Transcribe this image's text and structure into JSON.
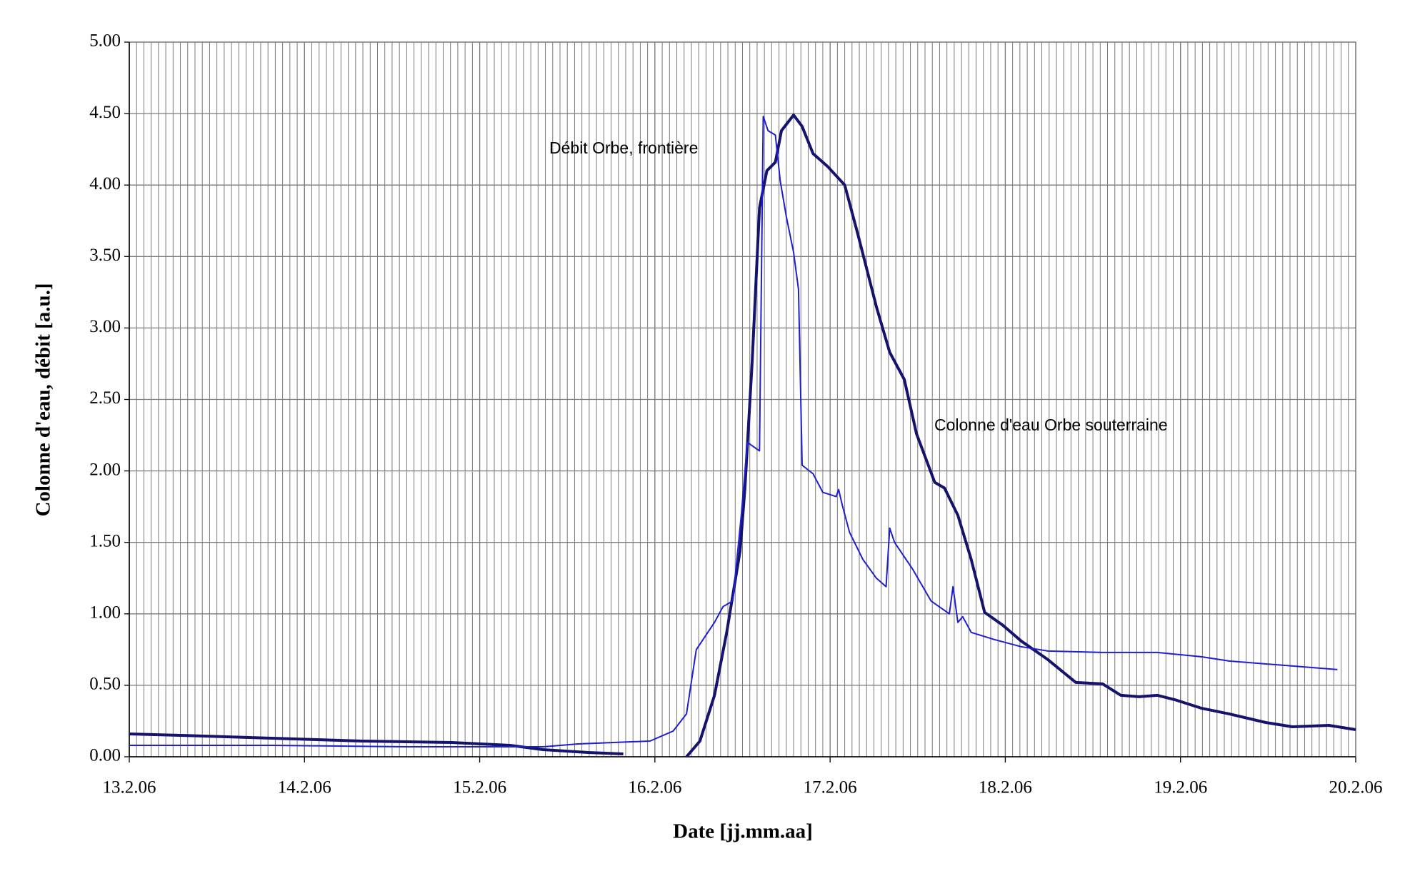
{
  "chart_data": {
    "type": "line",
    "xlabel": "Date [jj.mm.aa]",
    "ylabel": "Colonne d'eau, débit [a.u.]",
    "xlim": [
      "2006-02-13",
      "2006-02-20"
    ],
    "xticks": [
      {
        "value": "2006-02-13",
        "label": "13.2.06"
      },
      {
        "value": "2006-02-14",
        "label": "14.2.06"
      },
      {
        "value": "2006-02-15",
        "label": "15.2.06"
      },
      {
        "value": "2006-02-16",
        "label": "16.2.06"
      },
      {
        "value": "2006-02-17",
        "label": "17.2.06"
      },
      {
        "value": "2006-02-18",
        "label": "18.2.06"
      },
      {
        "value": "2006-02-19",
        "label": "19.2.06"
      },
      {
        "value": "2006-02-20",
        "label": "20.2.06"
      }
    ],
    "ylim": [
      0,
      5
    ],
    "yticks": [
      {
        "value": 0,
        "label": "0.00"
      },
      {
        "value": 0.5,
        "label": "0.50"
      },
      {
        "value": 1,
        "label": "1.00"
      },
      {
        "value": 1.5,
        "label": "1.50"
      },
      {
        "value": 2,
        "label": "2.00"
      },
      {
        "value": 2.5,
        "label": "2.50"
      },
      {
        "value": 3,
        "label": "3.00"
      },
      {
        "value": 3.5,
        "label": "3.50"
      },
      {
        "value": 4,
        "label": "4.00"
      },
      {
        "value": 4.5,
        "label": "4.50"
      },
      {
        "value": 5,
        "label": "5.00"
      }
    ],
    "grid": true,
    "series": [
      {
        "name": "Colonne d'eau Orbe souterraine",
        "color": "#14146e",
        "width": 4,
        "x": [
          "2006-02-13T00:00",
          "2006-02-13T07:00",
          "2006-02-13T19:30",
          "2006-02-14T07:50",
          "2006-02-14T20:10",
          "2006-02-15T04:10",
          "2006-02-15T08:40",
          "2006-02-15T14:50",
          "2006-02-15T19:40",
          "2006-02-15T22:00",
          "2006-02-16T04:20",
          "2006-02-16T06:10",
          "2006-02-16T08:10",
          "2006-02-16T09:50",
          "2006-02-16T11:40",
          "2006-02-16T12:20",
          "2006-02-16T13:20",
          "2006-02-16T14:20",
          "2006-02-16T15:20",
          "2006-02-16T16:30",
          "2006-02-16T17:20",
          "2006-02-16T19:00",
          "2006-02-16T20:10",
          "2006-02-16T21:40",
          "2006-02-16T23:40",
          "2006-02-17T02:00",
          "2006-02-17T03:50",
          "2006-02-17T06:20",
          "2006-02-17T08:10",
          "2006-02-17T10:10",
          "2006-02-17T11:50",
          "2006-02-17T14:20",
          "2006-02-17T15:40",
          "2006-02-17T17:30",
          "2006-02-17T19:20",
          "2006-02-17T21:10",
          "2006-02-17T23:40",
          "2006-02-18T02:10",
          "2006-02-18T05:50",
          "2006-02-18T09:40",
          "2006-02-18T13:20",
          "2006-02-18T15:50",
          "2006-02-18T18:20",
          "2006-02-18T20:50",
          "2006-02-18T23:10",
          "2006-02-19T02:50",
          "2006-02-19T06:40",
          "2006-02-19T11:40",
          "2006-02-19T15:20",
          "2006-02-19T20:20",
          "2006-02-20T00:00"
        ],
        "values": [
          0.16,
          0.15,
          0.13,
          0.11,
          0.1,
          0.08,
          0.05,
          0.03,
          0.02,
          null,
          0,
          0.11,
          0.43,
          0.87,
          1.44,
          1.88,
          2.77,
          3.84,
          4.1,
          4.16,
          4.38,
          4.49,
          4.41,
          4.22,
          4.13,
          4.0,
          3.65,
          3.15,
          2.83,
          2.64,
          2.26,
          1.92,
          1.88,
          1.69,
          1.38,
          1.01,
          0.92,
          0.81,
          0.68,
          0.52,
          0.51,
          0.43,
          0.42,
          0.43,
          0.4,
          0.34,
          0.3,
          0.24,
          0.21,
          0.22,
          0.19
        ]
      },
      {
        "name": "Débit Orbe, frontière",
        "color": "#1e1ed2",
        "width": 2,
        "x": [
          "2006-02-13T00:00",
          "2006-02-13T19:30",
          "2006-02-14T14:00",
          "2006-02-15T08:40",
          "2006-02-15T13:30",
          "2006-02-15T23:20",
          "2006-02-16T02:30",
          "2006-02-16T04:20",
          "2006-02-16T05:40",
          "2006-02-16T08:10",
          "2006-02-16T09:20",
          "2006-02-16T10:40",
          "2006-02-16T11:50",
          "2006-02-16T12:40",
          "2006-02-16T14:20",
          "2006-02-16T14:50",
          "2006-02-16T15:30",
          "2006-02-16T16:30",
          "2006-02-16T17:10",
          "2006-02-16T18:00",
          "2006-02-16T19:00",
          "2006-02-16T19:40",
          "2006-02-16T20:10",
          "2006-02-16T21:40",
          "2006-02-16T23:00",
          "2006-02-17T00:50",
          "2006-02-17T01:10",
          "2006-02-17T01:40",
          "2006-02-17T02:40",
          "2006-02-17T04:30",
          "2006-02-17T06:20",
          "2006-02-17T07:40",
          "2006-02-17T08:10",
          "2006-02-17T08:50",
          "2006-02-17T11:20",
          "2006-02-17T13:50",
          "2006-02-17T16:20",
          "2006-02-17T16:50",
          "2006-02-17T17:30",
          "2006-02-17T18:10",
          "2006-02-17T19:20",
          "2006-02-17T22:30",
          "2006-02-18T02:10",
          "2006-02-18T05:50",
          "2006-02-18T13:20",
          "2006-02-18T20:50",
          "2006-02-19T02:50",
          "2006-02-19T06:40",
          "2006-02-19T14:10",
          "2006-02-19T21:30"
        ],
        "values": [
          0.08,
          0.08,
          0.07,
          0.07,
          0.09,
          0.11,
          0.18,
          0.3,
          0.75,
          0.94,
          1.05,
          1.09,
          1.69,
          2.2,
          2.14,
          4.48,
          4.38,
          4.35,
          4.03,
          3.78,
          3.53,
          3.27,
          2.04,
          1.98,
          1.85,
          1.82,
          1.87,
          1.76,
          1.57,
          1.38,
          1.25,
          1.19,
          1.6,
          1.5,
          1.31,
          1.09,
          1.0,
          1.19,
          0.94,
          0.98,
          0.87,
          0.82,
          0.77,
          0.74,
          0.73,
          0.73,
          0.7,
          0.67,
          0.64,
          0.61
        ]
      }
    ]
  }
}
